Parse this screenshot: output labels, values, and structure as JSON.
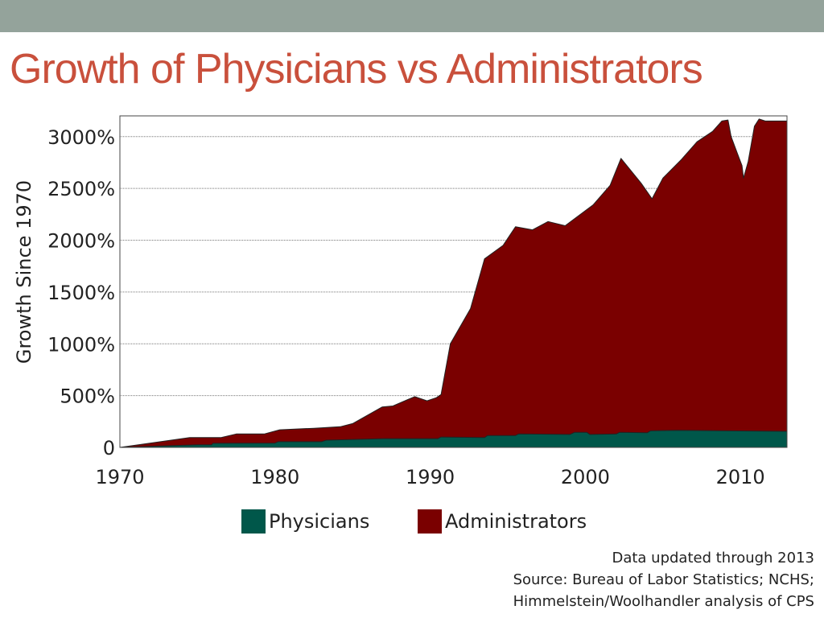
{
  "slide": {
    "title": "Growth of Physicians vs Administrators"
  },
  "chart_data": {
    "type": "area",
    "title": "Growth of Physicians vs Administrators",
    "xlabel": "",
    "ylabel": "Growth Since 1970",
    "xlim": [
      1970,
      2013
    ],
    "ylim": [
      0,
      3200
    ],
    "x_ticks": [
      1970,
      1980,
      1990,
      2000,
      2010
    ],
    "y_ticks": [
      {
        "value": 0,
        "label": "0"
      },
      {
        "value": 500,
        "label": "500%"
      },
      {
        "value": 1000,
        "label": "1000%"
      },
      {
        "value": 1500,
        "label": "1500%"
      },
      {
        "value": 2000,
        "label": "2000%"
      },
      {
        "value": 2500,
        "label": "2500%"
      },
      {
        "value": 3000,
        "label": "3000%"
      }
    ],
    "grid": true,
    "stacked": true,
    "legend_position": "bottom-center",
    "series": [
      {
        "name": "Physicians",
        "color": "#00574a",
        "points": [
          [
            1970,
            0
          ],
          [
            1975,
            25
          ],
          [
            1975.9,
            25
          ],
          [
            1976,
            40
          ],
          [
            1980,
            42
          ],
          [
            1980.2,
            55
          ],
          [
            1983,
            55
          ],
          [
            1983.3,
            70
          ],
          [
            1987,
            85
          ],
          [
            1990.5,
            85
          ],
          [
            1990.7,
            100
          ],
          [
            1993.5,
            95
          ],
          [
            1993.7,
            115
          ],
          [
            1995.5,
            115
          ],
          [
            1995.7,
            130
          ],
          [
            1999,
            125
          ],
          [
            1999.3,
            145
          ],
          [
            2000.1,
            145
          ],
          [
            2000.3,
            125
          ],
          [
            2002,
            130
          ],
          [
            2002.2,
            145
          ],
          [
            2004,
            142
          ],
          [
            2004.2,
            160
          ],
          [
            2006,
            165
          ],
          [
            2013,
            155
          ]
        ]
      },
      {
        "name": "Administrators",
        "color": "#7a0000",
        "points": [
          [
            1970,
            0
          ],
          [
            1974.5,
            95
          ],
          [
            1976.5,
            95
          ],
          [
            1977.5,
            130
          ],
          [
            1979.3,
            130
          ],
          [
            1980.3,
            170
          ],
          [
            1982.5,
            185
          ],
          [
            1984.2,
            200
          ],
          [
            1985,
            230
          ],
          [
            1986.9,
            390
          ],
          [
            1987.6,
            400
          ],
          [
            1989,
            490
          ],
          [
            1989.8,
            450
          ],
          [
            1990.4,
            480
          ],
          [
            1990.7,
            510
          ],
          [
            1991.3,
            1000
          ],
          [
            1992.6,
            1340
          ],
          [
            1993.5,
            1820
          ],
          [
            1994.7,
            1950
          ],
          [
            1995.5,
            2130
          ],
          [
            1996.6,
            2100
          ],
          [
            1997.6,
            2180
          ],
          [
            1998.7,
            2140
          ],
          [
            2000.5,
            2340
          ],
          [
            2001.6,
            2530
          ],
          [
            2002.3,
            2790
          ],
          [
            2003.6,
            2550
          ],
          [
            2004.3,
            2400
          ],
          [
            2005,
            2600
          ],
          [
            2006.2,
            2780
          ],
          [
            2007.2,
            2950
          ],
          [
            2008.2,
            3050
          ],
          [
            2008.8,
            3150
          ],
          [
            2009.2,
            3160
          ],
          [
            2009.4,
            3000
          ],
          [
            2009.8,
            2840
          ],
          [
            2010.1,
            2720
          ],
          [
            2010.2,
            2600
          ],
          [
            2010.5,
            2760
          ],
          [
            2010.9,
            3100
          ],
          [
            2011.2,
            3170
          ],
          [
            2011.6,
            3150
          ],
          [
            2013,
            3150
          ]
        ]
      }
    ],
    "notes": [
      "Data updated through 2013",
      "Source: Bureau of Labor Statistics; NCHS;",
      "Himmelstein/Woolhandler analysis of CPS"
    ]
  }
}
